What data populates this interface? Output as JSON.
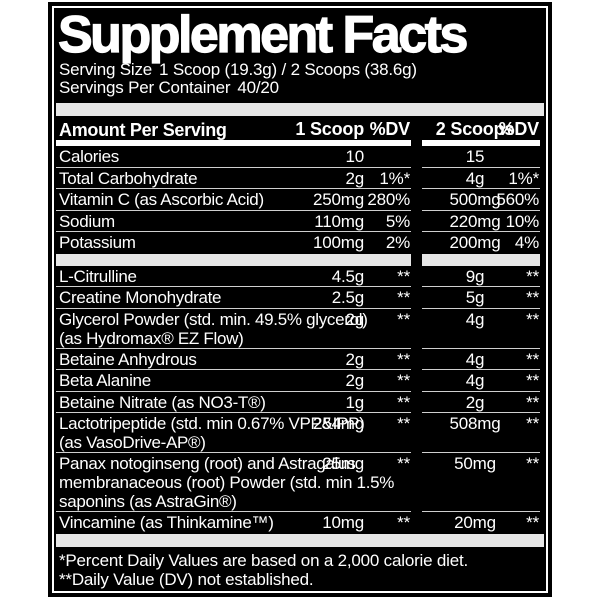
{
  "label": {
    "title": "Supplement Facts",
    "serving_size_label": "Serving Size",
    "serving_size_value": "1 Scoop (19.3g) / 2 Scoops (38.6g)",
    "servings_per_container_label": "Servings Per Container",
    "servings_per_container_value": "40/20",
    "header": {
      "amount_per_serving": "Amount Per Serving",
      "col_1scoop": "1 Scoop",
      "col_dv1": "%DV",
      "col_2scoops": "2 Scoops",
      "col_dv2": "%DV"
    },
    "rows": [
      {
        "name": "Calories",
        "scoop1": "10",
        "dv1": "",
        "scoop2": "15",
        "dv2": ""
      },
      {
        "name": "Total Carbohydrate",
        "scoop1": "2g",
        "dv1": "1%*",
        "scoop2": "4g",
        "dv2": "1%*"
      },
      {
        "name": "Vitamin C (as Ascorbic Acid)",
        "scoop1": "250mg",
        "dv1": "280%",
        "scoop2": "500mg",
        "dv2": "560%"
      },
      {
        "name": "Sodium",
        "scoop1": "110mg",
        "dv1": "5%",
        "scoop2": "220mg",
        "dv2": "10%"
      },
      {
        "name": "Potassium",
        "scoop1": "100mg",
        "dv1": "2%",
        "scoop2": "200mg",
        "dv2": "4%"
      },
      {
        "name": "L-Citrulline",
        "scoop1": "4.5g",
        "dv1": "**",
        "scoop2": "9g",
        "dv2": "**"
      },
      {
        "name": "Creatine Monohydrate",
        "scoop1": "2.5g",
        "dv1": "**",
        "scoop2": "5g",
        "dv2": "**"
      },
      {
        "name": "Glycerol Powder (std. min. 49.5% glycerol)\n(as Hydromax® EZ Flow)",
        "scoop1": "2g",
        "dv1": "**",
        "scoop2": "4g",
        "dv2": "**"
      },
      {
        "name": "Betaine Anhydrous",
        "scoop1": "2g",
        "dv1": "**",
        "scoop2": "4g",
        "dv2": "**"
      },
      {
        "name": "Beta Alanine",
        "scoop1": "2g",
        "dv1": "**",
        "scoop2": "4g",
        "dv2": "**"
      },
      {
        "name": "Betaine Nitrate (as NO3-T®)",
        "scoop1": "1g",
        "dv1": "**",
        "scoop2": "2g",
        "dv2": "**"
      },
      {
        "name": "Lactotripeptide (std. min 0.67% VPP&IPP)\n(as VasoDrive-AP®)",
        "scoop1": "254mg",
        "dv1": "**",
        "scoop2": "508mg",
        "dv2": "**"
      },
      {
        "name": "Panax notoginseng (root) and Astragalus\nmembranaceous (root) Powder (std. min 1.5%\nsaponins (as AstraGin®)",
        "scoop1": "25mg",
        "dv1": "**",
        "scoop2": "50mg",
        "dv2": "**"
      },
      {
        "name": "Vincamine (as Thinkamine™)",
        "scoop1": "10mg",
        "dv1": "**",
        "scoop2": "20mg",
        "dv2": "**"
      }
    ],
    "footnotes": [
      "*Percent Daily Values are based on a 2,000 calorie diet.",
      "**Daily Value (DV) not established."
    ],
    "colors": {
      "background": "#000000",
      "text": "#ffffff",
      "divider_bar": "#e6e6e6",
      "row_separator": "#cfcfcf"
    }
  }
}
